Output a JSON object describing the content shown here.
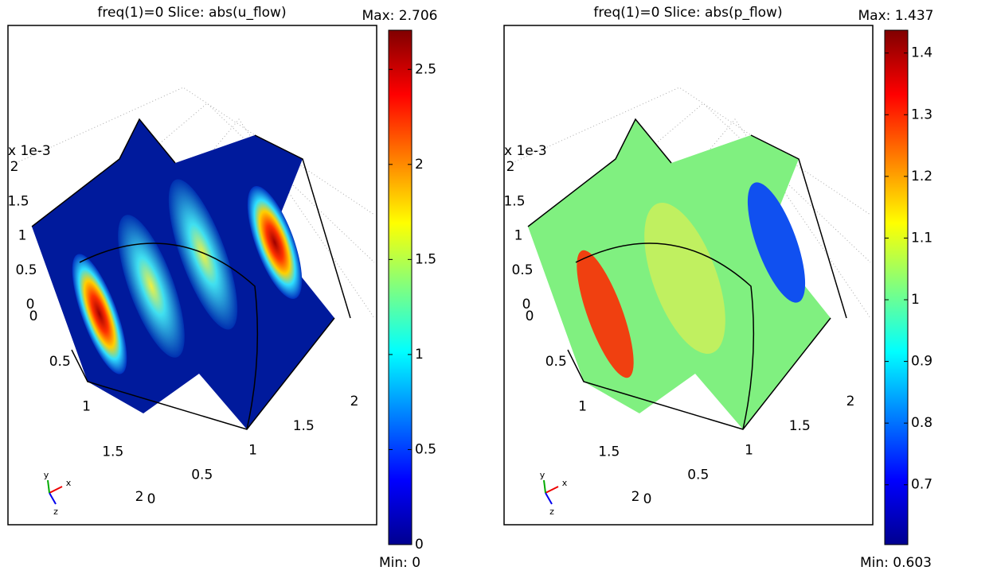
{
  "chart_data": [
    {
      "type": "slice3d",
      "title": "freq(1)=0    Slice: abs(u_flow)",
      "axis_exponent": "x 1e-3",
      "zticks": [
        0,
        0.5,
        1,
        1.5,
        2
      ],
      "yticks": [
        0,
        0.5,
        1,
        1.5,
        2
      ],
      "xticks": [
        0,
        0.5,
        1,
        1.5,
        2
      ],
      "triad_labels": [
        "x",
        "y",
        "z"
      ],
      "colorbar": {
        "clim": [
          0,
          2.706
        ],
        "ticks": [
          0,
          0.5,
          1,
          1.5,
          2,
          2.5
        ],
        "max_label": "Max: 2.706",
        "min_label": "Min: 0"
      }
    },
    {
      "type": "slice3d",
      "title": "freq(1)=0    Slice: abs(p_flow)",
      "axis_exponent": "x 1e-3",
      "zticks": [
        0,
        0.5,
        1,
        1.5,
        2
      ],
      "yticks": [
        0,
        0.5,
        1,
        1.5,
        2
      ],
      "xticks": [
        0,
        0.5,
        1,
        1.5,
        2
      ],
      "triad_labels": [
        "x",
        "y",
        "z"
      ],
      "colorbar": {
        "clim": [
          0.603,
          1.437
        ],
        "ticks": [
          0.7,
          0.8,
          0.9,
          1,
          1.1,
          1.2,
          1.3,
          1.4
        ],
        "max_label": "Max: 1.437",
        "min_label": "Min: 0.603"
      }
    }
  ]
}
